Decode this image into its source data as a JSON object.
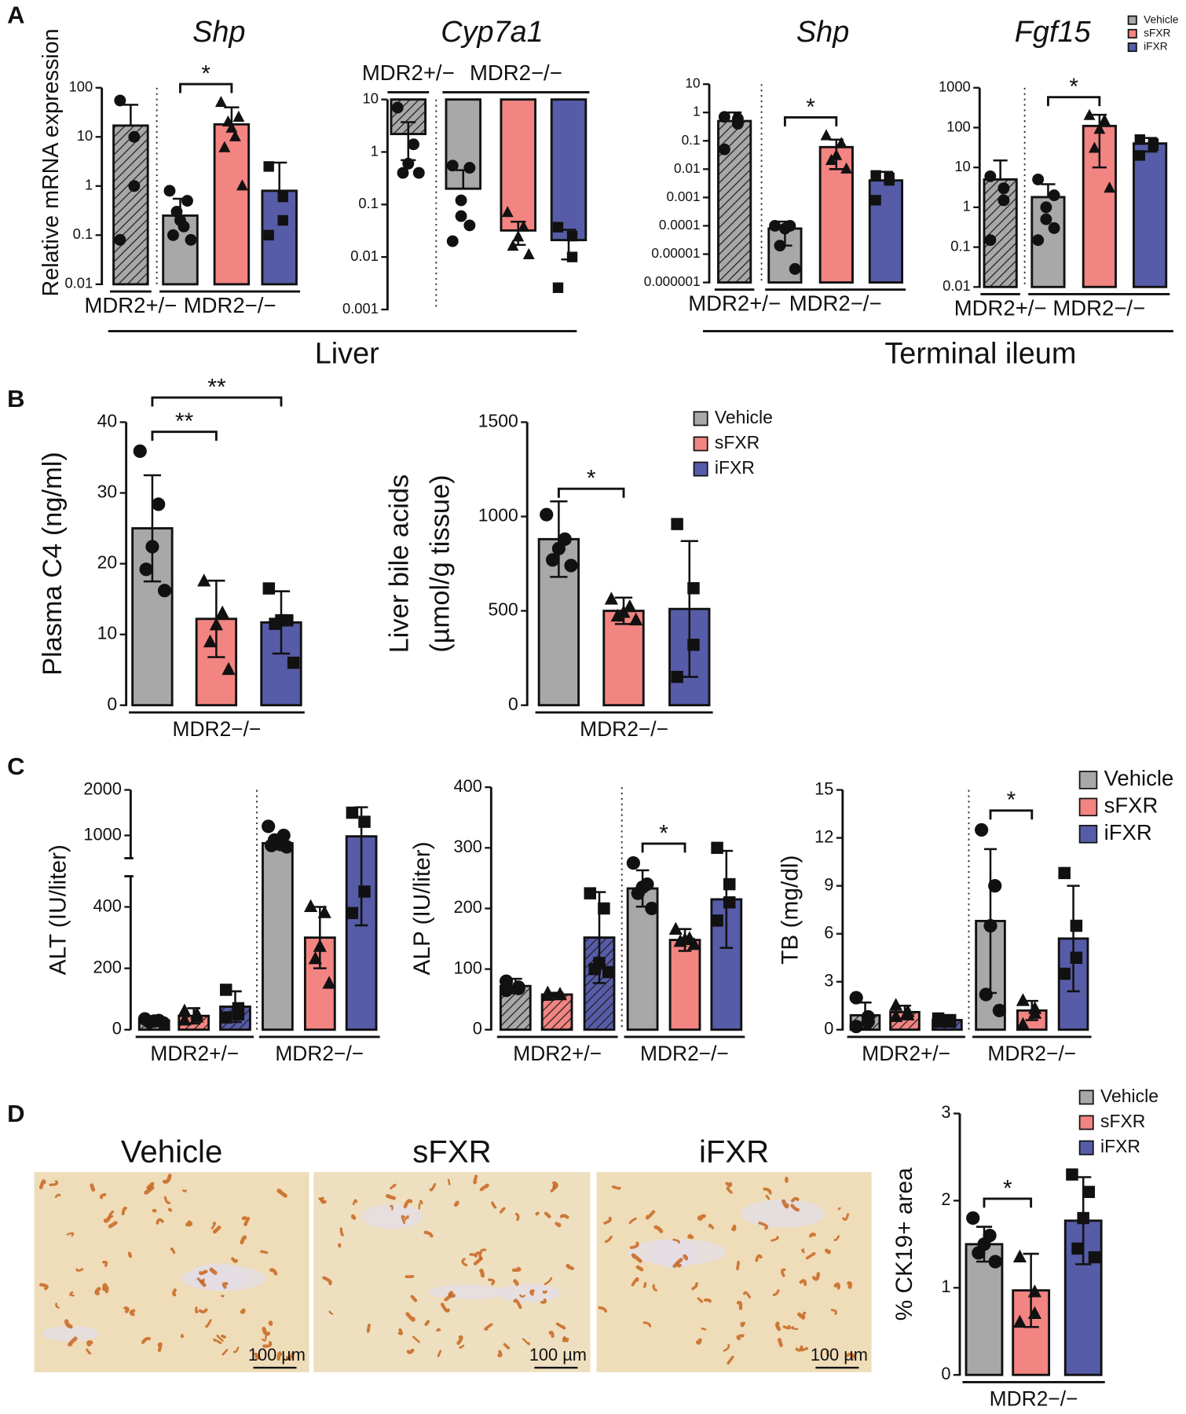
{
  "panels": [
    {
      "letter": "A",
      "captions": [
        "Liver",
        "Terminal ileum"
      ]
    },
    {
      "letter": "B"
    },
    {
      "letter": "C"
    },
    {
      "letter": "D",
      "images": [
        {
          "title": "Vehicle",
          "scale_bar": "100 µm"
        },
        {
          "title": "sFXR",
          "scale_bar": "100 µm"
        },
        {
          "title": "iFXR",
          "scale_bar": "100 µm"
        }
      ]
    }
  ],
  "chart_data": [
    {
      "type": "bar",
      "title": "Shp",
      "ylabel": "Relative mRNA expression",
      "log": true,
      "ylim": [
        0.01,
        100
      ],
      "yticks": [
        0.01,
        0.1,
        1,
        10,
        100
      ],
      "colors": [
        "#a8a8a8",
        "#f28482",
        "#575ca8"
      ],
      "groups": [
        {
          "label": "MDR2+/−",
          "bars": [
            {
              "series": 0,
              "hatched": true,
              "value": 17,
              "error": 28,
              "points": [
                55,
                10,
                1,
                0.08
              ]
            }
          ]
        },
        {
          "label": "MDR2−/−",
          "bars": [
            {
              "series": 0,
              "value": 0.25,
              "error": 0.3,
              "points": [
                0.8,
                0.5,
                0.3,
                0.2,
                0.15,
                0.1,
                0.08
              ]
            },
            {
              "series": 1,
              "value": 18,
              "error": 22,
              "points": [
                50,
                25,
                20,
                15,
                10,
                6,
                1
              ]
            },
            {
              "series": 2,
              "value": 0.8,
              "error": 2.2,
              "points": [
                2.5,
                0.6,
                0.2,
                0.1
              ]
            }
          ]
        }
      ],
      "sig": [
        {
          "bars": [
            1,
            2
          ],
          "label": "*"
        }
      ]
    },
    {
      "type": "bar",
      "title": "Cyp7a1",
      "log": true,
      "hanging": true,
      "ylim": [
        0.001,
        10
      ],
      "yticks": [
        0.001,
        0.01,
        0.1,
        1,
        10
      ],
      "colors": [
        "#a8a8a8",
        "#f28482",
        "#575ca8"
      ],
      "groups": [
        {
          "label": "MDR2+/−",
          "bars": [
            {
              "series": 0,
              "hatched": true,
              "value": 2.2,
              "error": 1.5,
              "points": [
                7,
                1.4,
                0.6,
                0.4,
                0.4
              ]
            }
          ]
        },
        {
          "label": "MDR2−/−",
          "bars": [
            {
              "series": 0,
              "value": 0.2,
              "error": 0.25,
              "points": [
                0.55,
                0.5,
                0.12,
                0.06,
                0.04,
                0.02
              ]
            },
            {
              "series": 1,
              "value": 0.032,
              "error": 0.015,
              "points": [
                0.07,
                0.037,
                0.024,
                0.016,
                0.011
              ]
            },
            {
              "series": 2,
              "value": 0.021,
              "error": 0.012,
              "points": [
                0.037,
                0.025,
                0.01,
                0.0026
              ]
            }
          ]
        }
      ],
      "sig": []
    },
    {
      "type": "bar",
      "title": "Shp",
      "log": true,
      "ylim": [
        1e-06,
        10
      ],
      "yticks": [
        1e-06,
        1e-05,
        0.0001,
        0.001,
        0.01,
        0.1,
        1,
        10
      ],
      "colors": [
        "#a8a8a8",
        "#f28482",
        "#575ca8"
      ],
      "groups": [
        {
          "label": "MDR2+/−",
          "bars": [
            {
              "series": 0,
              "hatched": true,
              "value": 0.5,
              "error": 0.5,
              "points": [
                0.7,
                0.6,
                0.4,
                0.05
              ]
            }
          ]
        },
        {
          "label": "MDR2−/−",
          "bars": [
            {
              "series": 0,
              "value": 8e-05,
              "error": 6e-05,
              "points": [
                0.0001,
                0.0001,
                8e-05,
                2e-05,
                3e-06
              ]
            },
            {
              "series": 1,
              "value": 0.06,
              "error": 0.05,
              "points": [
                0.15,
                0.08,
                0.03,
                0.02,
                0.01
              ]
            },
            {
              "series": 2,
              "value": 0.004,
              "error": 0.004,
              "points": [
                0.006,
                0.005,
                0.004,
                0.0008
              ]
            }
          ]
        }
      ],
      "sig": [
        {
          "bars": [
            1,
            2
          ],
          "label": "*"
        }
      ]
    },
    {
      "type": "bar",
      "title": "Fgf15",
      "log": true,
      "ylim": [
        0.01,
        1000
      ],
      "yticks": [
        0.01,
        0.1,
        1,
        10,
        100,
        1000
      ],
      "series": [
        {
          "name": "Vehicle",
          "color": "#a8a8a8"
        },
        {
          "name": "sFXR",
          "color": "#f28482"
        },
        {
          "name": "iFXR",
          "color": "#575ca8"
        }
      ],
      "legend": "top-right",
      "groups": [
        {
          "label": "MDR2+/−",
          "bars": [
            {
              "series": 0,
              "hatched": true,
              "value": 5,
              "error": 10,
              "points": [
                6,
                3,
                1.5,
                0.15
              ]
            }
          ]
        },
        {
          "label": "MDR2−/−",
          "bars": [
            {
              "series": 0,
              "value": 1.8,
              "error": 2,
              "points": [
                5,
                2,
                1,
                0.5,
                0.3,
                0.15
              ]
            },
            {
              "series": 1,
              "value": 110,
              "error": 100,
              "points": [
                200,
                150,
                90,
                30,
                3
              ]
            },
            {
              "series": 2,
              "value": 40,
              "error": 15,
              "points": [
                50,
                40,
                35,
                20
              ]
            }
          ]
        }
      ],
      "sig": [
        {
          "bars": [
            1,
            2
          ],
          "label": "*"
        }
      ]
    },
    {
      "type": "bar",
      "ylabel": "Plasma C4 (ng/ml)",
      "ylim": [
        0,
        40
      ],
      "yticks": [
        0,
        10,
        20,
        30,
        40
      ],
      "colors": [
        "#a8a8a8",
        "#f28482",
        "#575ca8"
      ],
      "groups": [
        {
          "label": "MDR2−/−",
          "bars": [
            {
              "series": 0,
              "value": 25,
              "error": 7.5,
              "points": [
                35.9,
                28.4,
                22.4,
                19.2,
                16.2
              ]
            },
            {
              "series": 1,
              "value": 12.2,
              "error": 5.4,
              "points": [
                17.5,
                13,
                11.3,
                8.9,
                5
              ]
            },
            {
              "series": 2,
              "value": 11.7,
              "error": 4.4,
              "points": [
                16.5,
                12,
                12,
                11.5,
                6
              ]
            }
          ]
        }
      ],
      "sig": [
        {
          "bars": [
            0,
            1
          ],
          "label": "**"
        },
        {
          "bars": [
            0,
            2
          ],
          "label": "**"
        }
      ]
    },
    {
      "type": "bar",
      "ylabel": [
        "Liver bile acids",
        "(µmol/g tissue)"
      ],
      "ylim": [
        0,
        1500
      ],
      "yticks": [
        0,
        500,
        1000,
        1500
      ],
      "series": [
        {
          "name": "Vehicle",
          "color": "#a8a8a8"
        },
        {
          "name": "sFXR",
          "color": "#f28482"
        },
        {
          "name": "iFXR",
          "color": "#575ca8"
        }
      ],
      "legend": "top-right",
      "groups": [
        {
          "label": "MDR2−/−",
          "bars": [
            {
              "series": 0,
              "value": 880,
              "error": 200,
              "points": [
                1010,
                880,
                830,
                770,
                740
              ]
            },
            {
              "series": 1,
              "value": 500,
              "error": 70,
              "points": [
                560,
                520,
                490,
                470,
                450
              ]
            },
            {
              "series": 2,
              "value": 510,
              "error": 360,
              "points": [
                960,
                620,
                320,
                150
              ]
            }
          ]
        }
      ],
      "sig": [
        {
          "bars": [
            0,
            1
          ],
          "label": "*"
        }
      ]
    },
    {
      "type": "bar",
      "ylabel": "ALT (IU/liter)",
      "ylim": [
        0,
        2000
      ],
      "ybreak": 500,
      "yticks": [
        0,
        200,
        400,
        1000,
        2000
      ],
      "colors": [
        "#a8a8a8",
        "#f28482",
        "#575ca8"
      ],
      "groups": [
        {
          "label": "MDR2+/−",
          "bars": [
            {
              "series": 0,
              "hatched": true,
              "value": 30,
              "error": 8,
              "points": [
                35,
                30,
                28,
                25,
                22
              ]
            },
            {
              "series": 1,
              "hatched": true,
              "value": 45,
              "error": 25,
              "points": [
                60,
                50,
                40,
                30
              ]
            },
            {
              "series": 2,
              "hatched": true,
              "value": 75,
              "error": 50,
              "points": [
                130,
                70,
                50,
                40
              ]
            }
          ]
        },
        {
          "label": "MDR2−/−",
          "bars": [
            {
              "series": 0,
              "value": 830,
              "error": 100,
              "points": [
                1200,
                1000,
                900,
                850,
                800,
                780,
                750
              ]
            },
            {
              "series": 1,
              "value": 300,
              "error": 100,
              "points": [
                400,
                380,
                270,
                230,
                150
              ]
            },
            {
              "series": 2,
              "value": 980,
              "error": 640,
              "points": [
                1500,
                1300,
                450,
                380
              ]
            }
          ]
        }
      ],
      "sig": []
    },
    {
      "type": "bar",
      "ylabel": "ALP (IU/liter)",
      "ylim": [
        0,
        400
      ],
      "yticks": [
        0,
        100,
        200,
        300,
        400
      ],
      "colors": [
        "#a8a8a8",
        "#f28482",
        "#575ca8"
      ],
      "groups": [
        {
          "label": "MDR2+/−",
          "bars": [
            {
              "series": 0,
              "hatched": true,
              "value": 72,
              "error": 12,
              "points": [
                80,
                70,
                68,
                65
              ]
            },
            {
              "series": 1,
              "hatched": true,
              "value": 58,
              "error": 3,
              "points": [
                60,
                58,
                57,
                56
              ]
            },
            {
              "series": 2,
              "hatched": true,
              "value": 152,
              "error": 75,
              "points": [
                225,
                200,
                110,
                100,
                95
              ]
            }
          ]
        },
        {
          "label": "MDR2−/−",
          "bars": [
            {
              "series": 0,
              "value": 233,
              "error": 30,
              "points": [
                275,
                240,
                235,
                225,
                200
              ]
            },
            {
              "series": 1,
              "value": 148,
              "error": 18,
              "points": [
                165,
                150,
                148,
                145,
                140
              ]
            },
            {
              "series": 2,
              "value": 215,
              "error": 80,
              "points": [
                300,
                240,
                210,
                180
              ]
            }
          ]
        }
      ],
      "sig": [
        {
          "bars": [
            3,
            4
          ],
          "label": "*"
        }
      ]
    },
    {
      "type": "bar",
      "ylabel": "TB (mg/dl)",
      "ylim": [
        0,
        15
      ],
      "yticks": [
        0,
        3,
        6,
        9,
        12,
        15
      ],
      "series": [
        {
          "name": "Vehicle",
          "color": "#a8a8a8"
        },
        {
          "name": "sFXR",
          "color": "#f28482"
        },
        {
          "name": "iFXR",
          "color": "#575ca8"
        }
      ],
      "legend": "top-right",
      "groups": [
        {
          "label": "MDR2+/−",
          "bars": [
            {
              "series": 0,
              "hatched": true,
              "value": 0.9,
              "error": 0.8,
              "points": [
                2,
                0.8,
                0.5,
                0.2
              ]
            },
            {
              "series": 1,
              "hatched": true,
              "value": 1.1,
              "error": 0.4,
              "points": [
                1.5,
                1.1,
                0.9,
                0.8
              ]
            },
            {
              "series": 2,
              "hatched": true,
              "value": 0.6,
              "error": 0.2,
              "points": [
                0.7,
                0.6,
                0.5,
                0.5
              ]
            }
          ]
        },
        {
          "label": "MDR2−/−",
          "bars": [
            {
              "series": 0,
              "value": 6.8,
              "error": 4.5,
              "points": [
                12.5,
                9,
                6.5,
                2.2,
                1.2
              ]
            },
            {
              "series": 1,
              "value": 1.2,
              "error": 0.6,
              "points": [
                1.8,
                1.3,
                1,
                0.3
              ]
            },
            {
              "series": 2,
              "value": 5.7,
              "error": 3.3,
              "points": [
                9.8,
                6.5,
                4.5,
                3.5
              ]
            }
          ]
        }
      ],
      "sig": [
        {
          "bars": [
            3,
            4
          ],
          "label": "*"
        }
      ]
    },
    {
      "type": "bar",
      "ylabel": "% CK19+ area",
      "ylim": [
        0,
        3
      ],
      "yticks": [
        0,
        1,
        2,
        3
      ],
      "series": [
        {
          "name": "Vehicle",
          "color": "#a8a8a8"
        },
        {
          "name": "sFXR",
          "color": "#f28482"
        },
        {
          "name": "iFXR",
          "color": "#575ca8"
        }
      ],
      "legend": "top-right",
      "groups": [
        {
          "label": "MDR2−/−",
          "bars": [
            {
              "series": 0,
              "value": 1.5,
              "error": 0.2,
              "points": [
                1.8,
                1.6,
                1.5,
                1.4,
                1.3
              ]
            },
            {
              "series": 1,
              "value": 0.97,
              "error": 0.42,
              "points": [
                1.35,
                0.95,
                0.7,
                0.6
              ]
            },
            {
              "series": 2,
              "value": 1.77,
              "error": 0.5,
              "points": [
                2.3,
                2.1,
                1.8,
                1.45,
                1.35
              ]
            }
          ]
        }
      ],
      "sig": [
        {
          "bars": [
            0,
            1
          ],
          "label": "*"
        }
      ]
    }
  ]
}
